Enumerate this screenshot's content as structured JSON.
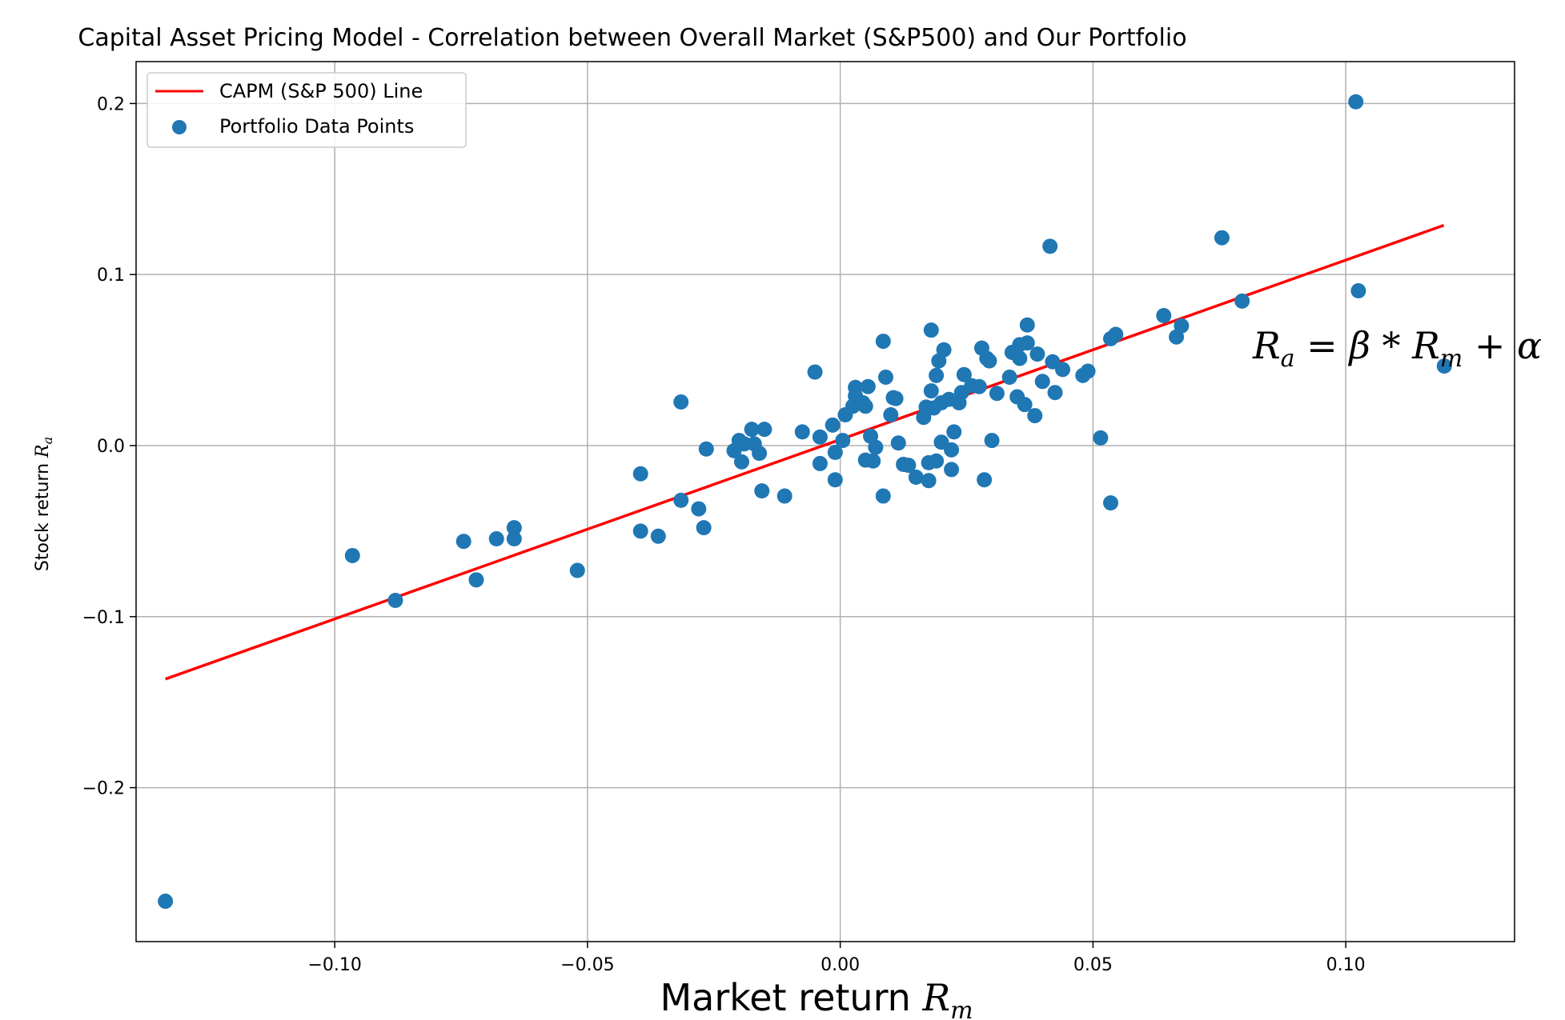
{
  "chart_data": {
    "type": "scatter",
    "title": "Capital Asset Pricing Model - Correlation between Overall Market (S&P500) and Our Portfolio",
    "xlabel": {
      "text": "Market return ",
      "var": "R",
      "sub": "m"
    },
    "ylabel": {
      "text": "Stock return ",
      "var": "R",
      "sub": "a"
    },
    "xlim": [
      -0.1393,
      0.1334
    ],
    "ylim": [
      -0.29,
      0.2245
    ],
    "xticks": [
      -0.1,
      -0.05,
      0.0,
      0.05,
      0.1
    ],
    "xtick_labels": [
      "−0.10",
      "−0.05",
      "0.00",
      "0.05",
      "0.10"
    ],
    "yticks": [
      -0.2,
      -0.1,
      0.0,
      0.1,
      0.2
    ],
    "ytick_labels": [
      "−0.2",
      "−0.1",
      "0.0",
      "0.1",
      "0.2"
    ],
    "grid": true,
    "legend_position": "top-left",
    "colors": {
      "line": "#ff0000",
      "points": "#1f77b4"
    },
    "series": [
      {
        "name": "CAPM (S&P 500) Line",
        "type": "line",
        "points": [
          [
            -0.1335,
            -0.1365
          ],
          [
            0.1194,
            0.1288
          ]
        ]
      },
      {
        "name": "Portfolio Data Points",
        "type": "scatter",
        "points": [
          [
            -0.1335,
            -0.2664
          ],
          [
            -0.0965,
            -0.0643
          ],
          [
            -0.088,
            -0.0905
          ],
          [
            -0.0745,
            -0.056
          ],
          [
            -0.072,
            -0.0785
          ],
          [
            -0.068,
            -0.0545
          ],
          [
            -0.0645,
            -0.048
          ],
          [
            -0.0645,
            -0.0545
          ],
          [
            -0.052,
            -0.073
          ],
          [
            -0.0395,
            -0.0165
          ],
          [
            -0.0395,
            -0.05
          ],
          [
            -0.036,
            -0.053
          ],
          [
            -0.0315,
            0.0255
          ],
          [
            -0.0315,
            -0.032
          ],
          [
            -0.028,
            -0.037
          ],
          [
            -0.027,
            -0.048
          ],
          [
            -0.0265,
            -0.002
          ],
          [
            -0.021,
            -0.003
          ],
          [
            -0.02,
            0.003
          ],
          [
            -0.0195,
            -0.0095
          ],
          [
            -0.019,
            0.001
          ],
          [
            -0.0175,
            0.0095
          ],
          [
            -0.017,
            0.001
          ],
          [
            -0.016,
            -0.0045
          ],
          [
            -0.015,
            0.0095
          ],
          [
            -0.0155,
            -0.0265
          ],
          [
            -0.011,
            -0.0295
          ],
          [
            -0.0075,
            0.008
          ],
          [
            -0.005,
            0.043
          ],
          [
            -0.004,
            0.005
          ],
          [
            -0.004,
            -0.0105
          ],
          [
            -0.0015,
            0.012
          ],
          [
            -0.001,
            -0.02
          ],
          [
            -0.001,
            -0.004
          ],
          [
            0.0005,
            0.003
          ],
          [
            0.001,
            0.018
          ],
          [
            0.0025,
            0.023
          ],
          [
            0.003,
            0.034
          ],
          [
            0.003,
            0.029
          ],
          [
            0.0045,
            0.025
          ],
          [
            0.005,
            -0.0085
          ],
          [
            0.005,
            0.023
          ],
          [
            0.0055,
            0.0345
          ],
          [
            0.006,
            0.0055
          ],
          [
            0.0065,
            -0.009
          ],
          [
            0.007,
            -0.001
          ],
          [
            0.0085,
            0.061
          ],
          [
            0.0085,
            -0.0295
          ],
          [
            0.009,
            0.04
          ],
          [
            0.01,
            0.018
          ],
          [
            0.0105,
            0.028
          ],
          [
            0.011,
            0.0275
          ],
          [
            0.0115,
            0.0015
          ],
          [
            0.0125,
            -0.011
          ],
          [
            0.0135,
            -0.0115
          ],
          [
            0.015,
            -0.0185
          ],
          [
            0.0165,
            0.0165
          ],
          [
            0.017,
            0.0225
          ],
          [
            0.0175,
            -0.0205
          ],
          [
            0.0175,
            -0.01
          ],
          [
            0.018,
            0.0675
          ],
          [
            0.018,
            0.032
          ],
          [
            0.0185,
            0.022
          ],
          [
            0.019,
            -0.009
          ],
          [
            0.019,
            0.041
          ],
          [
            0.0195,
            0.0495
          ],
          [
            0.02,
            0.002
          ],
          [
            0.02,
            0.025
          ],
          [
            0.0205,
            0.056
          ],
          [
            0.0215,
            0.027
          ],
          [
            0.022,
            -0.014
          ],
          [
            0.022,
            -0.0025
          ],
          [
            0.0225,
            0.008
          ],
          [
            0.0235,
            0.025
          ],
          [
            0.024,
            0.031
          ],
          [
            0.0245,
            0.0415
          ],
          [
            0.026,
            0.035
          ],
          [
            0.0275,
            0.0345
          ],
          [
            0.028,
            0.057
          ],
          [
            0.0285,
            -0.02
          ],
          [
            0.029,
            0.051
          ],
          [
            0.0295,
            0.0495
          ],
          [
            0.03,
            0.003
          ],
          [
            0.031,
            0.0305
          ],
          [
            0.0335,
            0.04
          ],
          [
            0.034,
            0.0545
          ],
          [
            0.035,
            0.0285
          ],
          [
            0.0355,
            0.059
          ],
          [
            0.0355,
            0.051
          ],
          [
            0.0365,
            0.024
          ],
          [
            0.037,
            0.06
          ],
          [
            0.037,
            0.0705
          ],
          [
            0.0385,
            0.0175
          ],
          [
            0.039,
            0.0535
          ],
          [
            0.04,
            0.0375
          ],
          [
            0.0415,
            0.1165
          ],
          [
            0.042,
            0.049
          ],
          [
            0.0425,
            0.031
          ],
          [
            0.044,
            0.0445
          ],
          [
            0.048,
            0.041
          ],
          [
            0.049,
            0.0435
          ],
          [
            0.0515,
            0.0045
          ],
          [
            0.0535,
            -0.0335
          ],
          [
            0.0535,
            0.0625
          ],
          [
            0.0545,
            0.065
          ],
          [
            0.064,
            0.076
          ],
          [
            0.0665,
            0.0635
          ],
          [
            0.0675,
            0.07
          ],
          [
            0.0755,
            0.1215
          ],
          [
            0.0795,
            0.0845
          ],
          [
            0.102,
            0.201
          ],
          [
            0.1025,
            0.0905
          ],
          [
            0.1195,
            0.0465
          ]
        ]
      }
    ],
    "annotation": {
      "lhs": "R",
      "lhs_sub": "a",
      "rhs1": " = β * R",
      "rhs_sub": "m",
      "rhs2": " + α"
    }
  }
}
